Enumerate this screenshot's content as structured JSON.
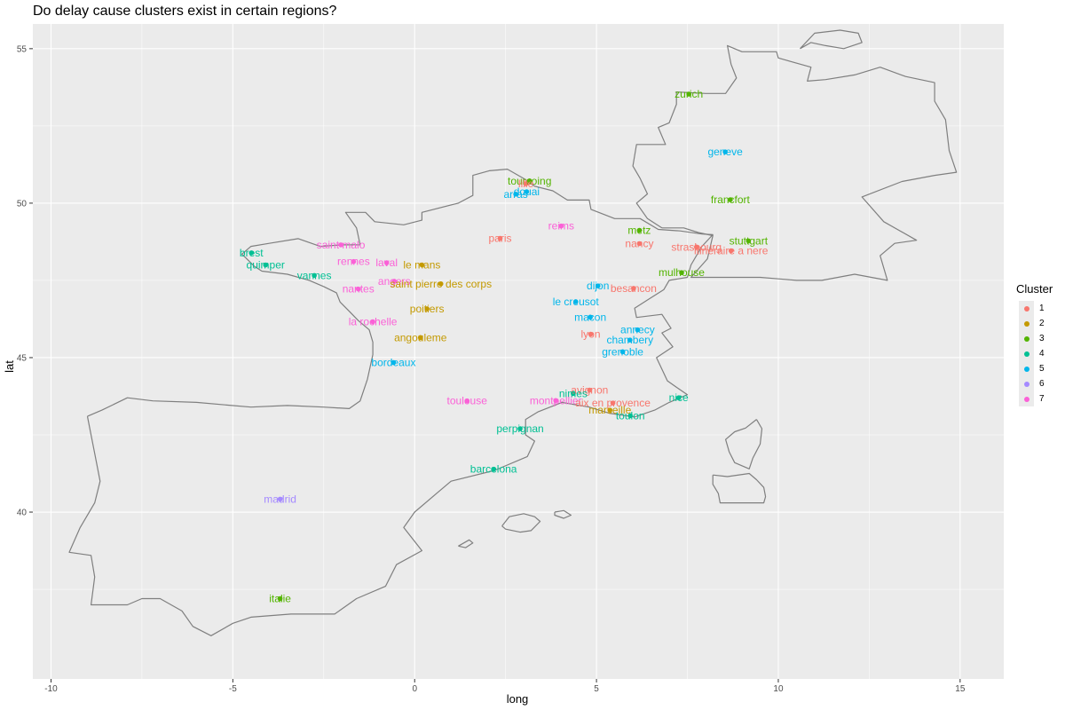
{
  "chart_data": {
    "type": "scatter",
    "title": "Do delay cause clusters exist in certain regions?",
    "xlabel": "long",
    "ylabel": "lat",
    "xlim": [
      -10.5,
      16.2
    ],
    "ylim": [
      34.6,
      55.8
    ],
    "xticks": [
      -10,
      -5,
      0,
      5,
      10,
      15
    ],
    "yticks": [
      40,
      45,
      50,
      55
    ],
    "grid": true,
    "legend": {
      "title": "Cluster",
      "position": "right",
      "entries": [
        "1",
        "2",
        "3",
        "4",
        "5",
        "6",
        "7"
      ]
    },
    "colors": {
      "1": "#F8766D",
      "2": "#C49A00",
      "3": "#53B400",
      "4": "#00C094",
      "5": "#00B6EB",
      "6": "#A58AFF",
      "7": "#FB61D7"
    },
    "points": [
      {
        "label": "zurich",
        "long": 7.54,
        "lat": 53.53,
        "cluster": "3"
      },
      {
        "label": "geneve",
        "long": 8.54,
        "lat": 51.66,
        "cluster": "5"
      },
      {
        "label": "tourcoing",
        "long": 3.16,
        "lat": 50.72,
        "cluster": "3"
      },
      {
        "label": "lille",
        "long": 3.06,
        "lat": 50.63,
        "cluster": "1"
      },
      {
        "label": "douai",
        "long": 3.08,
        "lat": 50.37,
        "cluster": "5"
      },
      {
        "label": "arras",
        "long": 2.78,
        "lat": 50.29,
        "cluster": "5"
      },
      {
        "label": "francfort",
        "long": 8.68,
        "lat": 50.11,
        "cluster": "3"
      },
      {
        "label": "reims",
        "long": 4.03,
        "lat": 49.26,
        "cluster": "7"
      },
      {
        "label": "metz",
        "long": 6.18,
        "lat": 49.12,
        "cluster": "3"
      },
      {
        "label": "paris",
        "long": 2.35,
        "lat": 48.86,
        "cluster": "1"
      },
      {
        "label": "stuttgart",
        "long": 9.18,
        "lat": 48.78,
        "cluster": "3"
      },
      {
        "label": "nancy",
        "long": 6.18,
        "lat": 48.69,
        "cluster": "1"
      },
      {
        "label": "saint malo",
        "long": -2.03,
        "lat": 48.65,
        "cluster": "7"
      },
      {
        "label": "strasbourg",
        "long": 7.75,
        "lat": 48.58,
        "cluster": "1"
      },
      {
        "label": "itineraire a nere",
        "long": 8.7,
        "lat": 48.46,
        "cluster": "1"
      },
      {
        "label": "brest",
        "long": -4.49,
        "lat": 48.39,
        "cluster": "4"
      },
      {
        "label": "rennes",
        "long": -1.68,
        "lat": 48.11,
        "cluster": "7"
      },
      {
        "label": "laval",
        "long": -0.77,
        "lat": 48.07,
        "cluster": "7"
      },
      {
        "label": "le mans",
        "long": 0.2,
        "lat": 48.0,
        "cluster": "2"
      },
      {
        "label": "quimper",
        "long": -4.1,
        "lat": 48.0,
        "cluster": "4"
      },
      {
        "label": "mulhouse",
        "long": 7.34,
        "lat": 47.75,
        "cluster": "3"
      },
      {
        "label": "vannes",
        "long": -2.76,
        "lat": 47.66,
        "cluster": "4"
      },
      {
        "label": "angers",
        "long": -0.56,
        "lat": 47.47,
        "cluster": "7"
      },
      {
        "label": "saint pierre des corps",
        "long": 0.72,
        "lat": 47.39,
        "cluster": "2"
      },
      {
        "label": "dijon",
        "long": 5.04,
        "lat": 47.32,
        "cluster": "5"
      },
      {
        "label": "besancon",
        "long": 6.02,
        "lat": 47.24,
        "cluster": "1"
      },
      {
        "label": "nantes",
        "long": -1.55,
        "lat": 47.22,
        "cluster": "7"
      },
      {
        "label": "le creusot",
        "long": 4.43,
        "lat": 46.81,
        "cluster": "5"
      },
      {
        "label": "poitiers",
        "long": 0.34,
        "lat": 46.58,
        "cluster": "2"
      },
      {
        "label": "macon",
        "long": 4.83,
        "lat": 46.31,
        "cluster": "5"
      },
      {
        "label": "la rochelle",
        "long": -1.15,
        "lat": 46.16,
        "cluster": "7"
      },
      {
        "label": "annecy",
        "long": 6.13,
        "lat": 45.9,
        "cluster": "5"
      },
      {
        "label": "lyon",
        "long": 4.84,
        "lat": 45.76,
        "cluster": "1"
      },
      {
        "label": "angouleme",
        "long": 0.16,
        "lat": 45.65,
        "cluster": "2"
      },
      {
        "label": "chambery",
        "long": 5.92,
        "lat": 45.57,
        "cluster": "5"
      },
      {
        "label": "grenoble",
        "long": 5.72,
        "lat": 45.19,
        "cluster": "5"
      },
      {
        "label": "bordeaux",
        "long": -0.58,
        "lat": 44.84,
        "cluster": "5"
      },
      {
        "label": "avignon",
        "long": 4.81,
        "lat": 43.95,
        "cluster": "1"
      },
      {
        "label": "nimes",
        "long": 4.36,
        "lat": 43.84,
        "cluster": "4"
      },
      {
        "label": "nice",
        "long": 7.26,
        "lat": 43.7,
        "cluster": "4"
      },
      {
        "label": "montpellier",
        "long": 3.88,
        "lat": 43.61,
        "cluster": "7"
      },
      {
        "label": "toulouse",
        "long": 1.44,
        "lat": 43.6,
        "cluster": "7"
      },
      {
        "label": "aix en provence",
        "long": 5.45,
        "lat": 43.53,
        "cluster": "1"
      },
      {
        "label": "marseille",
        "long": 5.37,
        "lat": 43.3,
        "cluster": "2"
      },
      {
        "label": "toulon",
        "long": 5.93,
        "lat": 43.12,
        "cluster": "4"
      },
      {
        "label": "perpignan",
        "long": 2.9,
        "lat": 42.7,
        "cluster": "4"
      },
      {
        "label": "barcelona",
        "long": 2.17,
        "lat": 41.39,
        "cluster": "4"
      },
      {
        "label": "madrid",
        "long": -3.7,
        "lat": 40.42,
        "cluster": "6"
      },
      {
        "label": "italie",
        "long": -3.7,
        "lat": 37.2,
        "cluster": "3"
      }
    ]
  },
  "map_outline": {
    "mainland": [
      [
        -9.0,
        43.1
      ],
      [
        -8.6,
        43.3
      ],
      [
        -7.9,
        43.7
      ],
      [
        -7.2,
        43.6
      ],
      [
        -6.0,
        43.55
      ],
      [
        -4.5,
        43.4
      ],
      [
        -3.5,
        43.45
      ],
      [
        -2.5,
        43.4
      ],
      [
        -1.8,
        43.35
      ],
      [
        -1.5,
        43.6
      ],
      [
        -1.3,
        44.3
      ],
      [
        -1.15,
        45.1
      ],
      [
        -1.15,
        45.5
      ],
      [
        -1.25,
        45.9
      ],
      [
        -1.55,
        46.2
      ],
      [
        -1.8,
        46.5
      ],
      [
        -2.05,
        46.8
      ],
      [
        -2.15,
        47.1
      ],
      [
        -2.5,
        47.3
      ],
      [
        -2.9,
        47.5
      ],
      [
        -3.5,
        47.7
      ],
      [
        -4.2,
        47.8
      ],
      [
        -4.4,
        47.95
      ],
      [
        -4.75,
        48.35
      ],
      [
        -4.5,
        48.6
      ],
      [
        -4.0,
        48.7
      ],
      [
        -3.2,
        48.85
      ],
      [
        -2.6,
        48.6
      ],
      [
        -2.0,
        48.65
      ],
      [
        -1.5,
        48.65
      ],
      [
        -1.6,
        49.2
      ],
      [
        -1.9,
        49.7
      ],
      [
        -1.35,
        49.7
      ],
      [
        -1.1,
        49.4
      ],
      [
        -0.3,
        49.3
      ],
      [
        0.2,
        49.45
      ],
      [
        0.2,
        49.7
      ],
      [
        1.2,
        50.0
      ],
      [
        1.6,
        50.25
      ],
      [
        1.6,
        50.9
      ],
      [
        2.05,
        51.05
      ],
      [
        2.55,
        51.1
      ],
      [
        3.0,
        50.8
      ],
      [
        3.3,
        50.55
      ],
      [
        3.8,
        50.4
      ],
      [
        4.2,
        50.1
      ],
      [
        4.8,
        50.1
      ],
      [
        4.85,
        49.8
      ],
      [
        5.5,
        49.5
      ],
      [
        6.2,
        49.5
      ],
      [
        6.7,
        49.15
      ],
      [
        7.3,
        49.1
      ],
      [
        7.9,
        49.0
      ],
      [
        8.2,
        48.98
      ],
      [
        7.9,
        48.6
      ],
      [
        7.6,
        48.0
      ],
      [
        7.5,
        47.6
      ],
      [
        7.0,
        47.5
      ],
      [
        6.85,
        47.2
      ],
      [
        6.45,
        46.9
      ],
      [
        6.05,
        46.6
      ],
      [
        6.1,
        46.3
      ],
      [
        6.8,
        46.4
      ],
      [
        7.05,
        45.95
      ],
      [
        6.8,
        45.8
      ],
      [
        7.1,
        45.35
      ],
      [
        6.65,
        45.0
      ],
      [
        6.85,
        44.5
      ],
      [
        6.95,
        44.25
      ],
      [
        7.25,
        44.0
      ],
      [
        7.5,
        43.8
      ],
      [
        7.0,
        43.55
      ],
      [
        6.6,
        43.3
      ],
      [
        6.05,
        43.08
      ],
      [
        5.35,
        43.2
      ],
      [
        4.8,
        43.4
      ],
      [
        4.05,
        43.55
      ],
      [
        3.4,
        43.25
      ],
      [
        3.05,
        43.0
      ],
      [
        3.05,
        42.5
      ],
      [
        3.3,
        42.3
      ],
      [
        3.1,
        41.8
      ],
      [
        2.2,
        41.35
      ],
      [
        1.0,
        41.0
      ],
      [
        0.6,
        40.6
      ],
      [
        0.0,
        40.0
      ],
      [
        -0.3,
        39.5
      ],
      [
        0.2,
        38.75
      ],
      [
        -0.5,
        38.3
      ],
      [
        -0.8,
        37.6
      ],
      [
        -1.6,
        37.2
      ],
      [
        -2.2,
        36.7
      ],
      [
        -3.4,
        36.7
      ],
      [
        -4.5,
        36.6
      ],
      [
        -5.0,
        36.4
      ],
      [
        -5.6,
        36.0
      ],
      [
        -6.1,
        36.3
      ],
      [
        -6.4,
        36.8
      ],
      [
        -7.0,
        37.2
      ],
      [
        -7.5,
        37.2
      ],
      [
        -7.9,
        37.0
      ],
      [
        -8.9,
        37.0
      ],
      [
        -8.8,
        37.9
      ],
      [
        -8.9,
        38.6
      ],
      [
        -9.5,
        38.7
      ],
      [
        -9.2,
        39.5
      ],
      [
        -8.8,
        40.3
      ],
      [
        -8.65,
        41.0
      ],
      [
        -8.8,
        41.9
      ],
      [
        -8.9,
        42.5
      ],
      [
        -9.0,
        43.1
      ]
    ],
    "northeast": [
      [
        6.8,
        49.2
      ],
      [
        7.4,
        49.2
      ],
      [
        7.8,
        49.05
      ],
      [
        8.2,
        48.95
      ],
      [
        8.05,
        48.2
      ],
      [
        7.6,
        47.6
      ],
      [
        8.6,
        47.6
      ],
      [
        9.5,
        47.6
      ],
      [
        10.0,
        47.55
      ],
      [
        10.5,
        47.5
      ],
      [
        11.2,
        47.5
      ],
      [
        12.1,
        47.7
      ],
      [
        13.0,
        47.5
      ],
      [
        12.8,
        48.3
      ],
      [
        13.2,
        48.7
      ],
      [
        13.8,
        48.8
      ],
      [
        12.9,
        49.4
      ],
      [
        12.3,
        50.2
      ],
      [
        13.4,
        50.7
      ],
      [
        14.3,
        50.9
      ],
      [
        14.9,
        51.0
      ],
      [
        14.7,
        51.7
      ],
      [
        14.6,
        52.7
      ],
      [
        14.3,
        53.3
      ],
      [
        14.3,
        53.9
      ],
      [
        13.5,
        54.1
      ],
      [
        12.8,
        54.4
      ],
      [
        12.1,
        54.15
      ],
      [
        11.3,
        54.0
      ],
      [
        10.8,
        53.95
      ],
      [
        10.9,
        54.4
      ],
      [
        10.0,
        54.7
      ],
      [
        9.95,
        54.9
      ],
      [
        9.0,
        54.9
      ],
      [
        8.6,
        55.1
      ],
      [
        8.7,
        54.5
      ],
      [
        8.85,
        54.05
      ],
      [
        8.55,
        53.55
      ],
      [
        8.0,
        53.55
      ],
      [
        7.2,
        53.6
      ],
      [
        7.2,
        53.2
      ],
      [
        7.0,
        52.6
      ],
      [
        6.7,
        52.45
      ],
      [
        6.9,
        51.9
      ],
      [
        6.1,
        51.9
      ],
      [
        6.0,
        51.2
      ],
      [
        6.2,
        50.8
      ],
      [
        6.4,
        50.3
      ],
      [
        6.1,
        50.0
      ],
      [
        6.4,
        49.5
      ],
      [
        6.8,
        49.2
      ]
    ],
    "corsica": [
      [
        9.4,
        43.0
      ],
      [
        9.55,
        42.7
      ],
      [
        9.5,
        42.2
      ],
      [
        9.3,
        41.75
      ],
      [
        9.2,
        41.4
      ],
      [
        8.8,
        41.6
      ],
      [
        8.65,
        41.95
      ],
      [
        8.55,
        42.35
      ],
      [
        8.8,
        42.6
      ],
      [
        9.1,
        42.72
      ],
      [
        9.4,
        43.0
      ]
    ],
    "sardinia_tip": [
      [
        8.2,
        41.2
      ],
      [
        8.6,
        41.15
      ],
      [
        9.2,
        41.25
      ],
      [
        9.4,
        41.05
      ],
      [
        9.6,
        40.8
      ],
      [
        9.65,
        40.5
      ],
      [
        9.6,
        40.3
      ],
      [
        8.4,
        40.3
      ],
      [
        8.35,
        40.6
      ],
      [
        8.2,
        40.9
      ],
      [
        8.2,
        41.2
      ]
    ],
    "mallorca": [
      [
        2.4,
        39.55
      ],
      [
        2.6,
        39.85
      ],
      [
        3.0,
        39.95
      ],
      [
        3.3,
        39.85
      ],
      [
        3.45,
        39.7
      ],
      [
        3.2,
        39.4
      ],
      [
        2.9,
        39.35
      ],
      [
        2.5,
        39.45
      ],
      [
        2.4,
        39.55
      ]
    ],
    "menorca": [
      [
        3.85,
        40.0
      ],
      [
        4.1,
        40.05
      ],
      [
        4.3,
        39.9
      ],
      [
        4.1,
        39.8
      ],
      [
        3.85,
        39.9
      ],
      [
        3.85,
        40.0
      ]
    ],
    "ibiza": [
      [
        1.2,
        38.9
      ],
      [
        1.5,
        39.1
      ],
      [
        1.6,
        39.0
      ],
      [
        1.4,
        38.85
      ],
      [
        1.2,
        38.9
      ]
    ],
    "denmark_islands": [
      [
        10.6,
        55.0
      ],
      [
        10.9,
        55.2
      ],
      [
        11.3,
        55.1
      ],
      [
        11.8,
        55.0
      ],
      [
        12.3,
        55.2
      ],
      [
        12.2,
        55.5
      ],
      [
        11.7,
        55.6
      ],
      [
        11.0,
        55.5
      ],
      [
        10.6,
        55.0
      ]
    ]
  }
}
